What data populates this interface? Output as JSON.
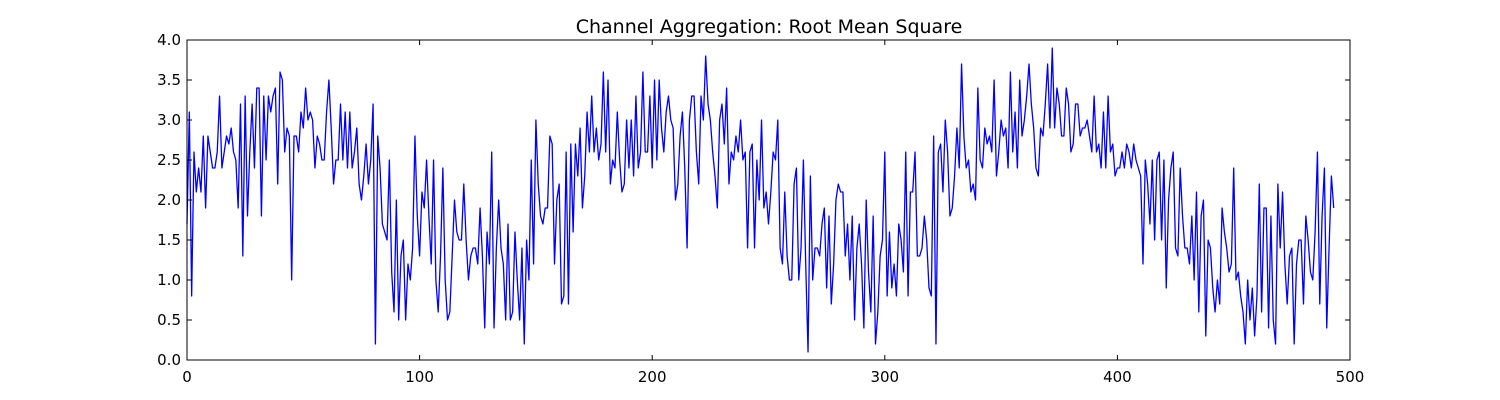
{
  "chart_data": {
    "type": "line",
    "title": "Channel Aggregation: Root Mean Square",
    "xlabel": "",
    "ylabel": "",
    "xlim": [
      0,
      500
    ],
    "ylim": [
      0.0,
      4.0
    ],
    "x_ticks": [
      "0",
      "100",
      "200",
      "300",
      "400",
      "500"
    ],
    "y_ticks": [
      "0.0",
      "0.5",
      "1.0",
      "1.5",
      "2.0",
      "2.5",
      "3.0",
      "3.5",
      "4.0"
    ],
    "grid": false,
    "legend": "none",
    "series": [
      {
        "color": "#0000ff",
        "x_start": 0,
        "x_step": 1,
        "values": [
          1.7,
          3.1,
          0.8,
          2.6,
          2.1,
          2.4,
          2.1,
          2.8,
          1.9,
          2.8,
          2.6,
          2.4,
          2.4,
          2.6,
          3.3,
          2.4,
          2.6,
          2.8,
          2.7,
          2.9,
          2.6,
          2.5,
          1.9,
          3.2,
          1.3,
          3.3,
          1.8,
          2.6,
          3.2,
          2.4,
          3.4,
          3.4,
          1.8,
          3.3,
          2.5,
          3.3,
          3.1,
          3.3,
          3.4,
          2.2,
          3.6,
          3.5,
          2.6,
          2.9,
          2.8,
          1.0,
          2.8,
          2.8,
          2.6,
          3.1,
          2.9,
          3.4,
          3.0,
          3.1,
          3.0,
          2.4,
          2.8,
          2.7,
          2.5,
          2.5,
          3.1,
          3.5,
          2.9,
          2.2,
          2.5,
          2.5,
          3.2,
          2.5,
          3.1,
          2.4,
          3.1,
          2.4,
          2.6,
          2.9,
          2.2,
          2.0,
          2.3,
          2.7,
          2.2,
          2.5,
          3.2,
          0.2,
          2.8,
          2.4,
          1.7,
          1.6,
          1.5,
          2.5,
          1.1,
          0.6,
          2.0,
          0.5,
          1.3,
          1.5,
          0.5,
          1.2,
          1.0,
          1.4,
          2.8,
          1.8,
          1.3,
          2.1,
          1.9,
          2.5,
          1.8,
          1.2,
          2.5,
          1.0,
          0.6,
          1.3,
          2.4,
          1.0,
          0.5,
          0.6,
          1.3,
          2.0,
          1.6,
          1.5,
          1.5,
          2.2,
          1.5,
          1.0,
          1.3,
          1.4,
          1.4,
          1.2,
          1.9,
          1.3,
          0.4,
          1.6,
          1.2,
          2.6,
          0.4,
          1.4,
          2.0,
          1.4,
          1.2,
          0.5,
          1.7,
          0.5,
          0.6,
          1.6,
          1.0,
          0.5,
          1.4,
          0.2,
          1.5,
          1.0,
          2.5,
          1.2,
          3.0,
          2.2,
          1.8,
          1.7,
          1.9,
          1.9,
          2.8,
          2.7,
          1.2,
          2.0,
          2.2,
          0.7,
          0.8,
          2.6,
          0.7,
          2.7,
          1.6,
          2.7,
          2.3,
          2.9,
          1.9,
          2.3,
          3.1,
          2.6,
          3.3,
          2.6,
          2.9,
          2.5,
          2.7,
          3.6,
          2.6,
          3.5,
          2.2,
          2.5,
          2.4,
          3.1,
          2.5,
          2.1,
          2.2,
          3.0,
          2.4,
          3.0,
          2.3,
          3.3,
          2.4,
          2.6,
          3.6,
          2.6,
          2.6,
          3.3,
          2.4,
          3.5,
          2.5,
          3.5,
          2.9,
          2.6,
          3.1,
          3.3,
          3.0,
          2.9,
          2.0,
          2.2,
          2.8,
          3.1,
          2.4,
          1.4,
          3.0,
          3.3,
          3.3,
          2.6,
          2.2,
          3.3,
          3.0,
          3.8,
          3.2,
          3.0,
          2.6,
          2.3,
          1.9,
          3.0,
          3.2,
          2.7,
          3.4,
          2.2,
          2.6,
          2.5,
          2.8,
          2.6,
          3.0,
          2.5,
          2.6,
          1.4,
          2.6,
          2.7,
          1.4,
          2.5,
          2.0,
          3.0,
          1.9,
          2.1,
          1.7,
          2.1,
          2.6,
          2.5,
          3.0,
          1.4,
          1.2,
          2.1,
          1.3,
          1.0,
          1.0,
          2.2,
          2.4,
          1.0,
          1.4,
          2.5,
          1.2,
          0.1,
          2.3,
          1.0,
          1.4,
          1.4,
          1.3,
          1.7,
          1.9,
          0.9,
          1.8,
          0.7,
          1.2,
          2.0,
          2.2,
          2.1,
          2.1,
          1.3,
          1.7,
          1.0,
          1.8,
          0.5,
          1.4,
          1.7,
          1.2,
          0.4,
          2.0,
          1.1,
          0.6,
          1.8,
          0.2,
          0.6,
          1.3,
          1.5,
          2.6,
          0.8,
          1.6,
          0.9,
          1.2,
          0.8,
          1.7,
          1.5,
          1.1,
          2.6,
          0.8,
          2.1,
          2.1,
          2.6,
          1.3,
          1.3,
          1.4,
          1.8,
          1.5,
          0.9,
          0.8,
          2.8,
          0.2,
          2.6,
          2.7,
          2.1,
          3.0,
          2.6,
          1.8,
          1.9,
          2.3,
          2.9,
          2.4,
          3.7,
          2.8,
          2.4,
          2.5,
          2.1,
          2.2,
          2.0,
          3.4,
          2.5,
          2.4,
          2.9,
          2.7,
          2.8,
          2.6,
          3.5,
          2.3,
          2.6,
          3.0,
          2.8,
          2.9,
          2.4,
          3.6,
          2.6,
          3.1,
          2.4,
          3.5,
          2.8,
          3.0,
          3.3,
          3.7,
          3.2,
          2.9,
          2.4,
          2.3,
          2.9,
          2.8,
          3.2,
          3.7,
          2.9,
          3.9,
          2.9,
          3.4,
          3.2,
          2.8,
          2.8,
          3.4,
          3.2,
          2.6,
          2.7,
          3.2,
          3.2,
          2.8,
          2.9,
          2.9,
          3.0,
          2.8,
          2.6,
          3.3,
          2.6,
          2.7,
          2.4,
          3.1,
          2.4,
          3.3,
          2.6,
          2.7,
          2.3,
          2.4,
          2.4,
          2.6,
          2.4,
          2.7,
          2.6,
          2.4,
          2.7,
          2.5,
          2.4,
          2.3,
          1.2,
          2.5,
          2.2,
          1.7,
          2.5,
          1.5,
          2.5,
          2.6,
          1.5,
          2.5,
          0.9,
          2.0,
          2.4,
          2.6,
          1.4,
          1.3,
          2.4,
          1.8,
          1.4,
          1.4,
          1.2,
          1.8,
          1.0,
          2.1,
          0.6,
          1.8,
          2.0,
          0.3,
          1.5,
          1.4,
          0.9,
          0.6,
          1.0,
          0.7,
          1.9,
          1.6,
          1.4,
          1.1,
          1.2,
          2.4,
          1.0,
          1.1,
          0.8,
          0.6,
          0.2,
          1.0,
          0.5,
          0.9,
          0.3,
          0.8,
          2.2,
          0.6,
          1.9,
          1.9,
          0.4,
          1.8,
          0.5,
          0.2,
          2.2,
          1.4,
          2.1,
          1.2,
          0.7,
          1.3,
          1.4,
          0.2,
          1.2,
          1.5,
          1.5,
          0.7,
          1.8,
          1.5,
          1.1,
          1.0,
          1.6,
          2.6,
          0.7,
          1.8,
          2.4,
          0.4,
          1.4,
          2.3,
          1.9
        ]
      }
    ]
  }
}
